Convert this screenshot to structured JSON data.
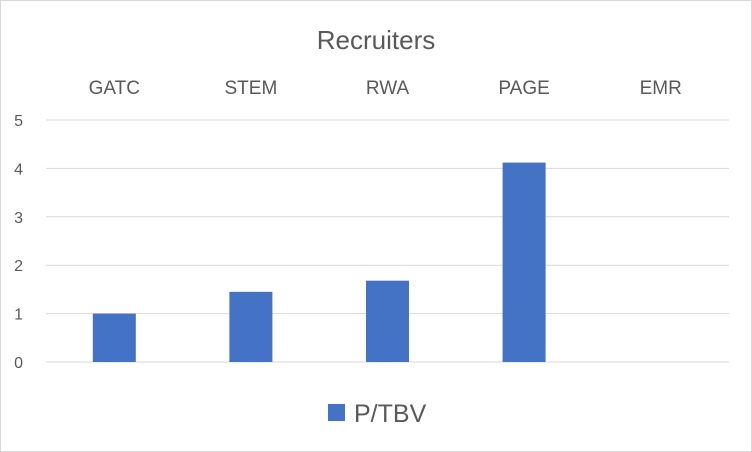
{
  "chart_data": {
    "type": "bar",
    "title": "Recruiters",
    "categories": [
      "GATC",
      "STEM",
      "RWA",
      "PAGE",
      "EMR"
    ],
    "series": [
      {
        "name": "P/TBV",
        "values": [
          1.0,
          1.45,
          1.68,
          4.12,
          null
        ],
        "color": "#4472c4"
      }
    ],
    "ylim": [
      0,
      5
    ],
    "yticks": [
      0,
      1,
      2,
      3,
      4,
      5
    ],
    "xlabel": "",
    "ylabel": "",
    "grid": true,
    "category_axis_position": "top",
    "legend": "bottom"
  }
}
